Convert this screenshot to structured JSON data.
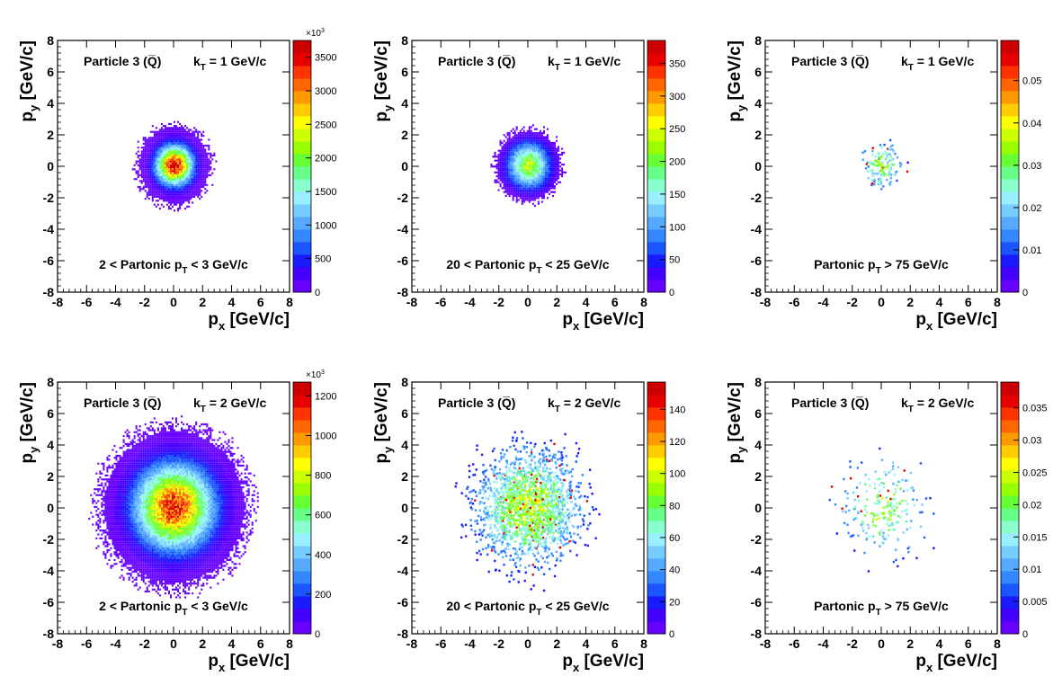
{
  "chart_data": [
    {
      "type": "heatmap",
      "particle_label": "Particle 3 (Q̅)",
      "kt_label": "k",
      "kt_sub": "T",
      "kt_value": "= 1 GeV/c",
      "range_pre": "2 < Partonic p",
      "range_sub": "T",
      "range_post": "< 3 GeV/c",
      "xlabel": "p",
      "xlabel_sub": "x",
      "xlabel_unit": "[GeV/c]",
      "ylabel": "p",
      "ylabel_sub": "y",
      "ylabel_unit": "[GeV/c]",
      "xlim": [
        -8,
        8
      ],
      "ylim": [
        -8,
        8
      ],
      "xticks": [
        -8,
        -6,
        -4,
        -2,
        0,
        2,
        4,
        6,
        8
      ],
      "yticks": [
        -8,
        -6,
        -4,
        -2,
        0,
        2,
        4,
        6,
        8
      ],
      "z_range": [
        0,
        3750
      ],
      "z_ticks": [
        0,
        500,
        1000,
        1500,
        2000,
        2500,
        3000,
        3500
      ],
      "z_multiplier": "×10",
      "z_multiplier_exp": "3",
      "distribution": {
        "center": [
          0,
          0
        ],
        "sigma": 0.8,
        "extent": 3.0,
        "peak_z": 3600,
        "n_points": 0
      }
    },
    {
      "type": "heatmap",
      "particle_label": "Particle 3 (Q̅)",
      "kt_label": "k",
      "kt_sub": "T",
      "kt_value": "= 1 GeV/c",
      "range_pre": "20 < Partonic p",
      "range_sub": "T",
      "range_post": "< 25 GeV/c",
      "xlabel": "p",
      "xlabel_sub": "x",
      "xlabel_unit": "[GeV/c]",
      "ylabel": "p",
      "ylabel_sub": "y",
      "ylabel_unit": "[GeV/c]",
      "xlim": [
        -8,
        8
      ],
      "ylim": [
        -8,
        8
      ],
      "xticks": [
        -8,
        -6,
        -4,
        -2,
        0,
        2,
        4,
        6,
        8
      ],
      "yticks": [
        -8,
        -6,
        -4,
        -2,
        0,
        2,
        4,
        6,
        8
      ],
      "z_range": [
        0,
        385
      ],
      "z_ticks": [
        0,
        50,
        100,
        150,
        200,
        250,
        300,
        350
      ],
      "z_multiplier": "",
      "z_multiplier_exp": "",
      "distribution": {
        "center": [
          0,
          0
        ],
        "sigma": 0.9,
        "extent": 2.7,
        "peak_z": 230,
        "n_points": 0
      }
    },
    {
      "type": "heatmap",
      "particle_label": "Particle 3 (Q̅)",
      "kt_label": "k",
      "kt_sub": "T",
      "kt_value": "= 1 GeV/c",
      "range_pre": "Partonic p",
      "range_sub": "T",
      "range_post": "> 75 GeV/c",
      "xlabel": "p",
      "xlabel_sub": "x",
      "xlabel_unit": "[GeV/c]",
      "ylabel": "p",
      "ylabel_sub": "y",
      "ylabel_unit": "[GeV/c]",
      "xlim": [
        -8,
        8
      ],
      "ylim": [
        -8,
        8
      ],
      "xticks": [
        -8,
        -6,
        -4,
        -2,
        0,
        2,
        4,
        6,
        8
      ],
      "yticks": [
        -8,
        -6,
        -4,
        -2,
        0,
        2,
        4,
        6,
        8
      ],
      "z_range": [
        0,
        0.0595
      ],
      "z_ticks": [
        0,
        0.01,
        0.02,
        0.03,
        0.04,
        0.05
      ],
      "z_multiplier": "",
      "z_multiplier_exp": "",
      "distribution": {
        "center": [
          0,
          0
        ],
        "sigma": 0.7,
        "extent": 1.8,
        "peak_z": 0.03,
        "n_points": 140
      }
    },
    {
      "type": "heatmap",
      "particle_label": "Particle 3 (Q̅)",
      "kt_label": "k",
      "kt_sub": "T",
      "kt_value": "= 2 GeV/c",
      "range_pre": "2 < Partonic p",
      "range_sub": "T",
      "range_post": "< 3 GeV/c",
      "xlabel": "p",
      "xlabel_sub": "x",
      "xlabel_unit": "[GeV/c]",
      "ylabel": "p",
      "ylabel_sub": "y",
      "ylabel_unit": "[GeV/c]",
      "xlim": [
        -8,
        8
      ],
      "ylim": [
        -8,
        8
      ],
      "xticks": [
        -8,
        -6,
        -4,
        -2,
        0,
        2,
        4,
        6,
        8
      ],
      "yticks": [
        -8,
        -6,
        -4,
        -2,
        0,
        2,
        4,
        6,
        8
      ],
      "z_range": [
        0,
        1270
      ],
      "z_ticks": [
        0,
        200,
        400,
        600,
        800,
        1000,
        1200
      ],
      "z_multiplier": "×10",
      "z_multiplier_exp": "3",
      "distribution": {
        "center": [
          0,
          0
        ],
        "sigma": 1.7,
        "extent": 6.0,
        "peak_z": 1150,
        "n_points": 0
      }
    },
    {
      "type": "heatmap",
      "particle_label": "Particle 3 (Q̅)",
      "kt_label": "k",
      "kt_sub": "T",
      "kt_value": "= 2 GeV/c",
      "range_pre": "20 < Partonic p",
      "range_sub": "T",
      "range_post": "< 25 GeV/c",
      "xlabel": "p",
      "xlabel_sub": "x",
      "xlabel_unit": "[GeV/c]",
      "ylabel": "p",
      "ylabel_sub": "y",
      "ylabel_unit": "[GeV/c]",
      "xlim": [
        -8,
        8
      ],
      "ylim": [
        -8,
        8
      ],
      "xticks": [
        -8,
        -6,
        -4,
        -2,
        0,
        2,
        4,
        6,
        8
      ],
      "yticks": [
        -8,
        -6,
        -4,
        -2,
        0,
        2,
        4,
        6,
        8
      ],
      "z_range": [
        0,
        157
      ],
      "z_ticks": [
        0,
        20,
        40,
        60,
        80,
        100,
        120,
        140
      ],
      "z_multiplier": "",
      "z_multiplier_exp": "",
      "distribution": {
        "center": [
          0,
          0
        ],
        "sigma": 1.7,
        "extent": 5.5,
        "peak_z": 90,
        "n_points": 1900
      }
    },
    {
      "type": "heatmap",
      "particle_label": "Particle 3 (Q̅)",
      "kt_label": "k",
      "kt_sub": "T",
      "kt_value": "= 2 GeV/c",
      "range_pre": "Partonic p",
      "range_sub": "T",
      "range_post": "> 75 GeV/c",
      "xlabel": "p",
      "xlabel_sub": "x",
      "xlabel_unit": "[GeV/c]",
      "ylabel": "p",
      "ylabel_sub": "y",
      "ylabel_unit": "[GeV/c]",
      "xlim": [
        -8,
        8
      ],
      "ylim": [
        -8,
        8
      ],
      "xticks": [
        -8,
        -6,
        -4,
        -2,
        0,
        2,
        4,
        6,
        8
      ],
      "yticks": [
        -8,
        -6,
        -4,
        -2,
        0,
        2,
        4,
        6,
        8
      ],
      "z_range": [
        0,
        0.039
      ],
      "z_ticks": [
        0,
        0.005,
        0.01,
        0.015,
        0.02,
        0.025,
        0.03,
        0.035
      ],
      "z_multiplier": "",
      "z_multiplier_exp": "",
      "distribution": {
        "center": [
          0,
          0
        ],
        "sigma": 1.5,
        "extent": 4.5,
        "peak_z": 0.02,
        "n_points": 230
      }
    }
  ],
  "palette": [
    "#6600ff",
    "#4400ff",
    "#1a1aff",
    "#1a55ff",
    "#3388ff",
    "#55aaff",
    "#77ccff",
    "#99eeff",
    "#88ffcc",
    "#66ff88",
    "#66ff33",
    "#99ff00",
    "#ccff00",
    "#ffff00",
    "#ffcc00",
    "#ff9900",
    "#ff6600",
    "#ff3300",
    "#e60000",
    "#cc0000"
  ]
}
